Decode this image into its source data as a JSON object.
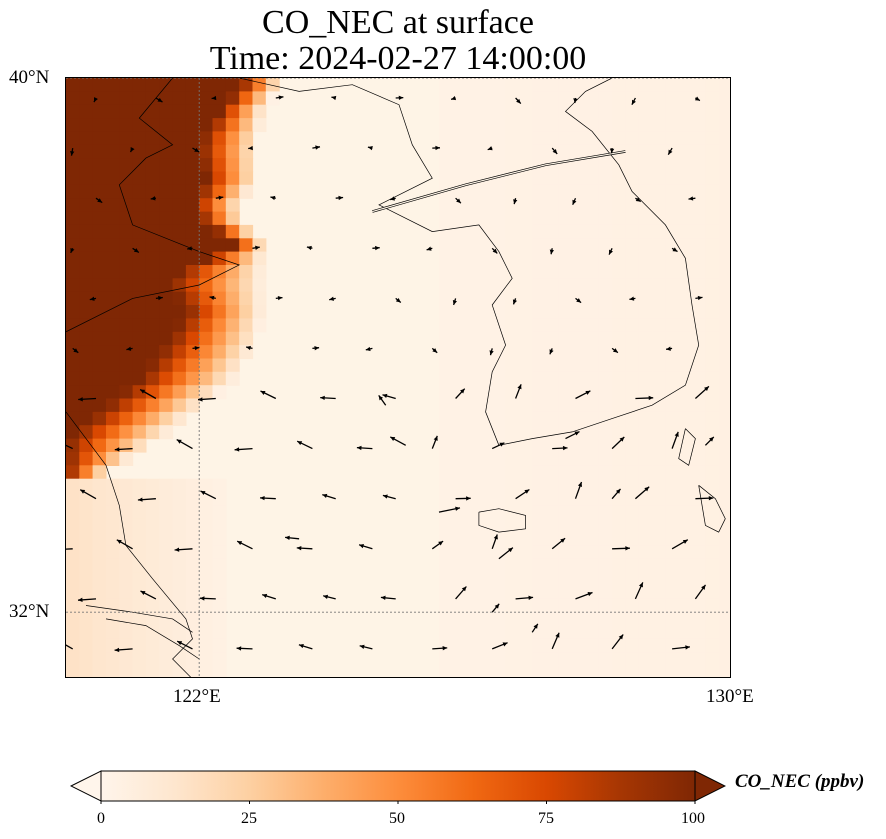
{
  "title": {
    "line1": "CO_NEC at surface",
    "line2": "Time: 2024-02-27 14:00:00"
  },
  "axes": {
    "lat_labels": [
      "40°N",
      "32°N"
    ],
    "lon_labels": [
      "122°E",
      "130°E"
    ]
  },
  "colorbar": {
    "label": "CO_NEC (ppbv)",
    "ticks": [
      "0",
      "25",
      "50",
      "75",
      "100"
    ],
    "extend": "both",
    "colormap": [
      "#fff5eb",
      "#fee6ce",
      "#fdd0a2",
      "#fdae6b",
      "#fd8d3c",
      "#f16913",
      "#d94801",
      "#a63603",
      "#7f2704"
    ]
  },
  "chart_data": {
    "type": "heatmap",
    "title": "CO_NEC at surface",
    "subtitle": "Time: 2024-02-27 14:00:00",
    "lon_range": [
      120,
      130
    ],
    "lat_range": [
      31,
      40
    ],
    "lon_ticks": [
      122,
      130
    ],
    "lat_ticks": [
      32,
      40
    ],
    "value_range": [
      0,
      100
    ],
    "units": "ppbv",
    "gridlines": "dotted at 122°E and 32°N",
    "plume_edge": [
      {
        "lat": 40.0,
        "lon_full": 122.7,
        "lon_zero": 123.3
      },
      {
        "lat": 39.5,
        "lon_full": 122.3,
        "lon_zero": 123.0
      },
      {
        "lat": 39.0,
        "lon_full": 122.0,
        "lon_zero": 122.9
      },
      {
        "lat": 38.5,
        "lon_full": 122.1,
        "lon_zero": 122.9
      },
      {
        "lat": 38.0,
        "lon_full": 121.9,
        "lon_zero": 122.6
      },
      {
        "lat": 37.5,
        "lon_full": 122.5,
        "lon_zero": 123.0
      },
      {
        "lat": 37.0,
        "lon_full": 121.5,
        "lon_zero": 123.0
      },
      {
        "lat": 36.5,
        "lon_full": 121.8,
        "lon_zero": 123.0
      },
      {
        "lat": 36.0,
        "lon_full": 121.5,
        "lon_zero": 122.9
      },
      {
        "lat": 35.5,
        "lon_full": 121.1,
        "lon_zero": 122.6
      },
      {
        "lat": 35.0,
        "lon_full": 120.5,
        "lon_zero": 122.0
      },
      {
        "lat": 34.6,
        "lon_full": 120.0,
        "lon_zero": 121.5
      },
      {
        "lat": 34.0,
        "lon_full": 120.0,
        "lon_zero": 120.5
      }
    ],
    "wind_vectors_sample": [
      {
        "lon": 123.5,
        "lat": 33.1,
        "u": -1.0,
        "v": 0.1
      },
      {
        "lon": 125.6,
        "lat": 33.5,
        "u": 1.5,
        "v": 0.3
      },
      {
        "lon": 126.5,
        "lat": 32.8,
        "u": 1.0,
        "v": 0.8
      },
      {
        "lon": 128.2,
        "lat": 33.7,
        "u": 0.6,
        "v": 0.7
      },
      {
        "lon": 127.5,
        "lat": 34.6,
        "u": 1.0,
        "v": 0.5
      },
      {
        "lon": 129.6,
        "lat": 34.5,
        "u": 0.6,
        "v": 0.6
      },
      {
        "lon": 125.1,
        "lat": 34.5,
        "u": -1.1,
        "v": 0.6
      },
      {
        "lon": 124.8,
        "lat": 35.1,
        "u": -0.5,
        "v": 0.7
      },
      {
        "lon": 126.4,
        "lat": 32.0,
        "u": 0.5,
        "v": 0.6
      },
      {
        "lon": 127.0,
        "lat": 31.7,
        "u": 0.4,
        "v": 0.6
      }
    ]
  }
}
